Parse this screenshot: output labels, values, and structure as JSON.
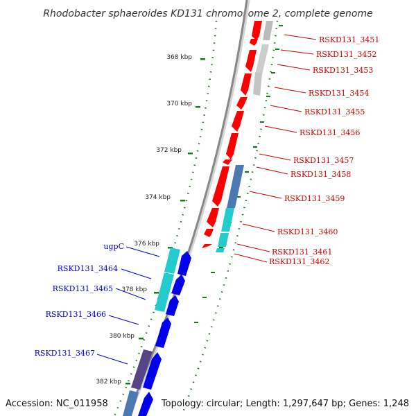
{
  "title": "Rhodobacter sphaeroides KD131 chromosome 2, complete genome",
  "footer": {
    "accession": "Accession: NC_011958",
    "summary": "Topology: circular; Length: 1,297,647 bp; Genes: 1,248"
  },
  "colors": {
    "forward_label": "#cc0000",
    "reverse_label": "#0000cc",
    "tick": "#1a7a1a",
    "backbone": "#888888"
  },
  "ticks": [
    {
      "label": "368 kbp"
    },
    {
      "label": "370 kbp"
    },
    {
      "label": "372 kbp"
    },
    {
      "label": "374 kbp"
    },
    {
      "label": "376 kbp"
    },
    {
      "label": "378 kbp"
    },
    {
      "label": "380 kbp"
    },
    {
      "label": "382 kbp"
    }
  ],
  "forward_genes": [
    {
      "label": "RSKD131_3451"
    },
    {
      "label": "RSKD131_3452"
    },
    {
      "label": "RSKD131_3453"
    },
    {
      "label": "RSKD131_3454"
    },
    {
      "label": "RSKD131_3455"
    },
    {
      "label": "RSKD131_3456"
    },
    {
      "label": "RSKD131_3457"
    },
    {
      "label": "RSKD131_3458"
    },
    {
      "label": "RSKD131_3459"
    },
    {
      "label": "RSKD131_3460"
    },
    {
      "label": "RSKD131_3461"
    },
    {
      "label": "RSKD131_3462"
    }
  ],
  "reverse_genes": [
    {
      "label": "ugpC"
    },
    {
      "label": "RSKD131_3464"
    },
    {
      "label": "RSKD131_3465"
    },
    {
      "label": "RSKD131_3466"
    },
    {
      "label": "RSKD131_3467"
    }
  ]
}
